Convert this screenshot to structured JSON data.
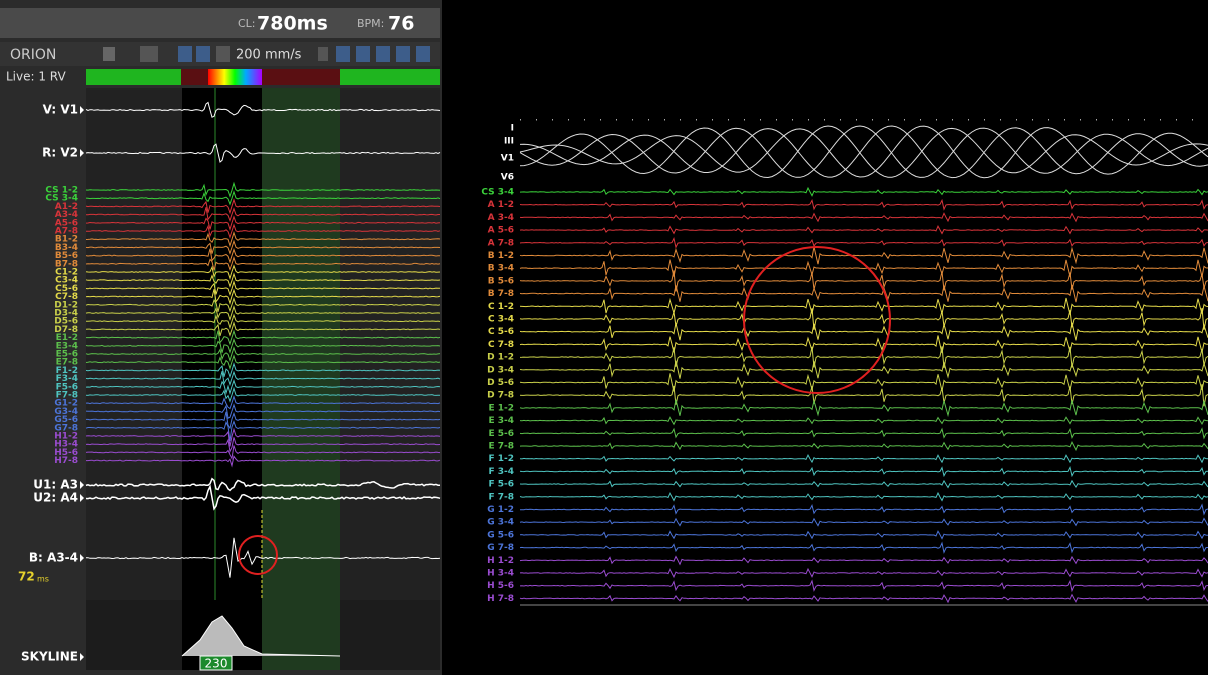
{
  "header": {
    "cl_label": "CL:",
    "cl_value": "780ms",
    "bpm_label": "BPM:",
    "bpm_value": "76"
  },
  "toolbar": {
    "system": "ORION",
    "speed": "200 mm/s"
  },
  "left_panel": {
    "live": "Live: 1 RV",
    "channels": [
      "V: V1",
      "R: V2",
      "U1: A3",
      "U2: A4",
      "B: A3-4",
      "SKYLINE"
    ],
    "measure_value": "72",
    "measure_unit": "ms",
    "skyline_value": "230",
    "electrode_labels": [
      "CS 1-2",
      "CS 3-4",
      "A1-2",
      "A3-4",
      "A5-6",
      "A7-8",
      "B1-2",
      "B3-4",
      "B5-6",
      "B7-8",
      "C1-2",
      "C3-4",
      "C5-6",
      "C7-8",
      "D1-2",
      "D3-4",
      "D5-6",
      "D7-8",
      "E1-2",
      "E3-4",
      "E5-6",
      "E7-8",
      "F1-2",
      "F3-4",
      "F5-6",
      "F7-8",
      "G1-2",
      "G3-4",
      "G5-6",
      "G7-8",
      "H1-2",
      "H3-4",
      "H5-6",
      "H7-8"
    ]
  },
  "right_panel": {
    "surface_labels": [
      "I",
      "III",
      "V1",
      "V6"
    ],
    "channel_labels": [
      "CS 3-4",
      "A 1-2",
      "A 3-4",
      "A 5-6",
      "A 7-8",
      "B 1-2",
      "B 3-4",
      "B 5-6",
      "B 7-8",
      "C 1-2",
      "C 3-4",
      "C 5-6",
      "C 7-8",
      "D 1-2",
      "D 3-4",
      "D 5-6",
      "D 7-8",
      "E 1-2",
      "E 3-4",
      "E 5-6",
      "E 7-8",
      "F 1-2",
      "F 3-4",
      "F 5-6",
      "F 7-8",
      "G 1-2",
      "G 3-4",
      "G 5-6",
      "G 7-8",
      "H 1-2",
      "H 3-4",
      "H 5-6",
      "H 7-8"
    ]
  }
}
